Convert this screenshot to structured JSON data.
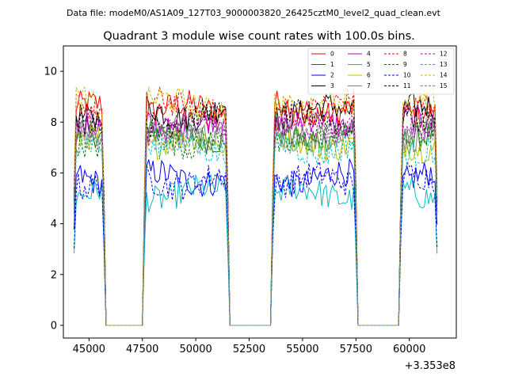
{
  "header_text": "Data file: modeM0/AS1A09_127T03_9000003820_26425cztM0_level2_quad_clean.evt",
  "chart_data": {
    "type": "line",
    "title": "Quadrant 3 module wise count rates with 100.0s bins.",
    "xlabel": "",
    "ylabel": "",
    "x_offset_label": "+3.353e8",
    "xlim": [
      43800,
      62200
    ],
    "ylim": [
      -0.5,
      11.0
    ],
    "xticks": [
      45000,
      47500,
      50000,
      52500,
      55000,
      57500,
      60000
    ],
    "xtick_labels": [
      "45000",
      "47500",
      "50000",
      "52500",
      "55000",
      "57500",
      "60000"
    ],
    "yticks": [
      0,
      2,
      4,
      6,
      8,
      10
    ],
    "ytick_labels": [
      "0",
      "2",
      "4",
      "6",
      "8",
      "10"
    ],
    "legend_position": "top-right",
    "on_segments": [
      [
        44300,
        45700
      ],
      [
        47600,
        51500
      ],
      [
        53600,
        57500
      ],
      [
        59600,
        61300
      ]
    ],
    "off_level": 0.0,
    "series": [
      {
        "name": "0",
        "color": "#ff0000",
        "style": "solid",
        "level": 8.5
      },
      {
        "name": "1",
        "color": "#008000",
        "style": "solid",
        "level": 7.5
      },
      {
        "name": "2",
        "color": "#0000ff",
        "style": "solid",
        "level": 5.8
      },
      {
        "name": "3",
        "color": "#000000",
        "style": "solid",
        "level": 8.4
      },
      {
        "name": "4",
        "color": "#bf00bf",
        "style": "solid",
        "level": 7.9
      },
      {
        "name": "5",
        "color": "#00bfbf",
        "style": "solid",
        "level": 5.2
      },
      {
        "name": "6",
        "color": "#bfbf00",
        "style": "solid",
        "level": 7.2
      },
      {
        "name": "7",
        "color": "#808080",
        "style": "solid",
        "level": 7.6
      },
      {
        "name": "8",
        "color": "#ff0000",
        "style": "dashed",
        "level": 8.6
      },
      {
        "name": "9",
        "color": "#008000",
        "style": "dashed",
        "level": 7.3
      },
      {
        "name": "10",
        "color": "#0000ff",
        "style": "dashed",
        "level": 5.7
      },
      {
        "name": "11",
        "color": "#000000",
        "style": "dashed",
        "level": 8.1
      },
      {
        "name": "12",
        "color": "#bf00bf",
        "style": "dashed",
        "level": 7.8
      },
      {
        "name": "13",
        "color": "#00bfbf",
        "style": "dashed",
        "level": 7.0
      },
      {
        "name": "14",
        "color": "#bfbf00",
        "style": "dashed",
        "level": 8.7
      },
      {
        "name": "15",
        "color": "#808080",
        "style": "dashed",
        "level": 7.5
      }
    ]
  }
}
